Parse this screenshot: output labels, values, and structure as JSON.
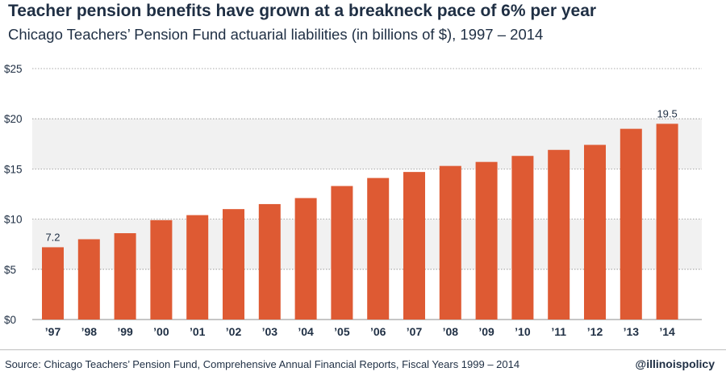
{
  "title": "Teacher pension benefits have grown at a breakneck pace of 6% per year",
  "subtitle": "Chicago Teachers’ Pension Fund actuarial liabilities (in billions of $), 1997 – 2014",
  "footer": {
    "source": "Source: Chicago Teachers’ Pension Fund, Comprehensive Annual Financial Reports, Fiscal Years 1999 – 2014",
    "handle": "@illinoispolicy"
  },
  "colors": {
    "bar": "#de5a33",
    "band": "#f1f1f1",
    "text": "#1f2f44"
  },
  "chart_data": {
    "type": "bar",
    "categories": [
      "’97",
      "’98",
      "’99",
      "’00",
      "’01",
      "’02",
      "’03",
      "’04",
      "’05",
      "’06",
      "’07",
      "’08",
      "’09",
      "’10",
      "’11",
      "’12",
      "’13",
      "’14"
    ],
    "values": [
      7.2,
      8.0,
      8.6,
      9.9,
      10.4,
      11.0,
      11.5,
      12.1,
      13.3,
      14.1,
      14.7,
      15.3,
      15.7,
      16.3,
      16.9,
      17.4,
      19.0,
      19.5
    ],
    "data_labels": [
      {
        "category": "’97",
        "text": "7.2"
      },
      {
        "category": "’14",
        "text": "19.5"
      }
    ],
    "ylim": [
      0,
      25
    ],
    "yticks": [
      0,
      5,
      10,
      15,
      20,
      25
    ],
    "ytick_labels": [
      "$0",
      "$5",
      "$10",
      "$15",
      "$20",
      "$25"
    ],
    "xlabel": "",
    "ylabel": "",
    "grid": true,
    "legend": "none"
  }
}
